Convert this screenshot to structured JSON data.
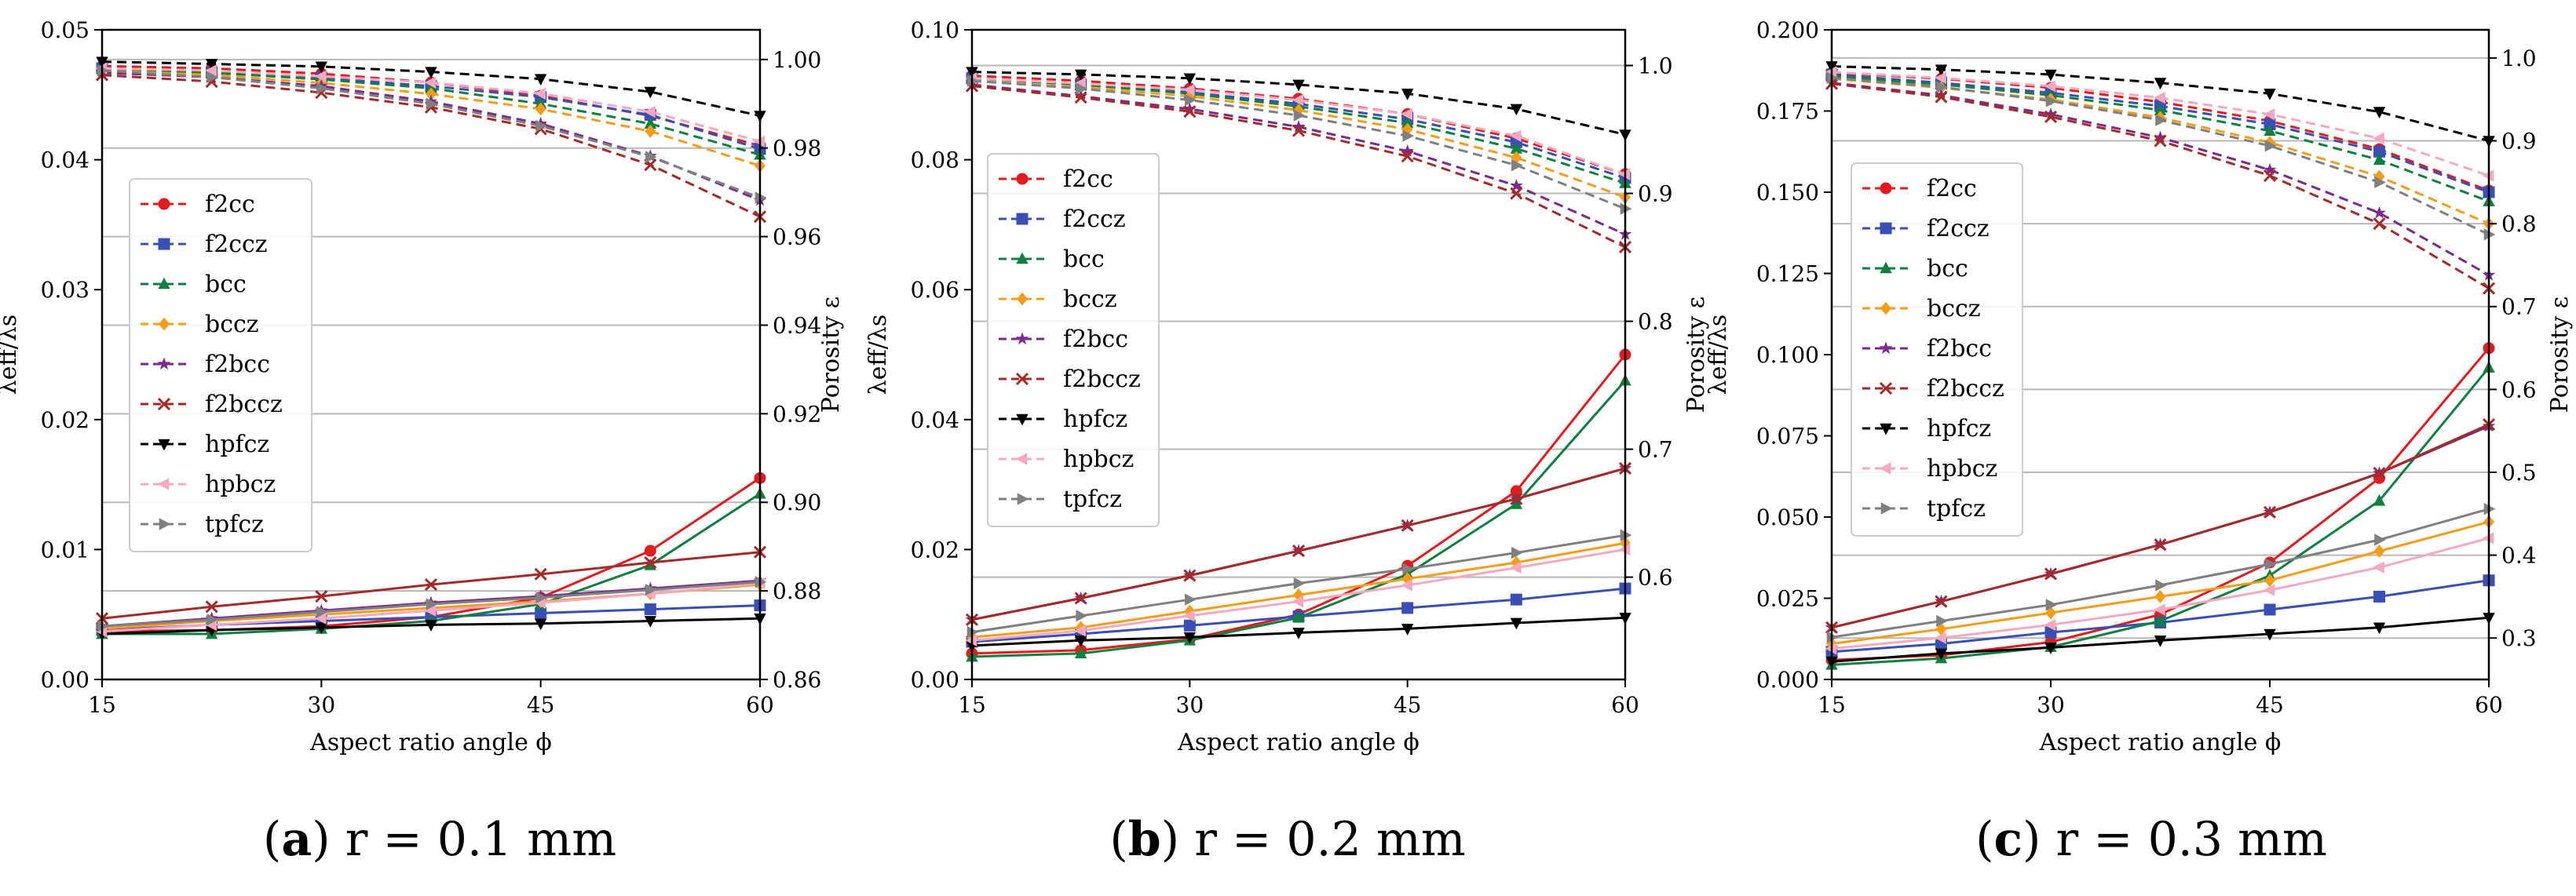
{
  "colors": {
    "f2cc": "#e41a1c",
    "f2ccz": "#3a4fb5",
    "bcc": "#0f8040",
    "bccz": "#f59c1a",
    "f2bcc": "#7b2a8f",
    "f2bccz": "#a52a2a",
    "hpfcz": "#000000",
    "hpbcz": "#f4a9c0",
    "tpfcz": "#808080",
    "grid": "#b8b8b8"
  },
  "markers": {
    "f2cc": "circle",
    "f2ccz": "square",
    "bcc": "triangle-up",
    "bccz": "diamond",
    "f2bcc": "star",
    "f2bccz": "x",
    "hpfcz": "triangle-down",
    "hpbcz": "triangle-left",
    "tpfcz": "triangle-right"
  },
  "chart_data": [
    {
      "type": "line",
      "caption_letter": "a",
      "caption_rest": "r = 0.1 mm",
      "xlabel": "Aspect ratio angle ϕ",
      "ylabel": "λeff/λs",
      "y2label": "Porosity ε",
      "xlim": [
        15,
        60
      ],
      "ylim": [
        0,
        0.05
      ],
      "y2lim": [
        0.86,
        1.0067
      ],
      "xticks": [
        "15",
        "30",
        "45",
        "60"
      ],
      "yticks": [
        "0.00",
        "0.01",
        "0.02",
        "0.03",
        "0.04",
        "0.05"
      ],
      "y2ticks": [
        "0.86",
        "0.88",
        "0.90",
        "0.92",
        "0.94",
        "0.96",
        "0.98",
        "1.00"
      ],
      "grid": "right axis",
      "legend_position": "left-middle",
      "x": [
        15,
        22.5,
        30,
        37.5,
        45,
        52.5,
        60
      ],
      "series": [
        {
          "name": "f2cc",
          "conductivity": [
            0.0037,
            0.0038,
            0.0041,
            0.0048,
            0.0063,
            0.0099,
            0.0155
          ],
          "porosity": [
            0.9985,
            0.998,
            0.9968,
            0.9948,
            0.9918,
            0.9873,
            0.9805
          ]
        },
        {
          "name": "f2ccz",
          "conductivity": [
            0.0038,
            0.0042,
            0.0045,
            0.0048,
            0.0051,
            0.0054,
            0.0057
          ],
          "porosity": [
            0.998,
            0.997,
            0.9958,
            0.994,
            0.9915,
            0.9875,
            0.9798
          ]
        },
        {
          "name": "bcc",
          "conductivity": [
            0.0035,
            0.0035,
            0.0039,
            0.0045,
            0.0058,
            0.0088,
            0.0143
          ],
          "porosity": [
            0.998,
            0.997,
            0.9955,
            0.9935,
            0.99,
            0.9855,
            0.9785
          ]
        },
        {
          "name": "bccz",
          "conductivity": [
            0.0039,
            0.0045,
            0.005,
            0.0055,
            0.006,
            0.0066,
            0.0073
          ],
          "porosity": [
            0.9975,
            0.9965,
            0.9947,
            0.9922,
            0.9888,
            0.9838,
            0.976
          ]
        },
        {
          "name": "f2bcc",
          "conductivity": [
            0.0041,
            0.0047,
            0.0053,
            0.0059,
            0.0064,
            0.007,
            0.0076
          ],
          "porosity": [
            0.997,
            0.996,
            0.994,
            0.9905,
            0.9855,
            0.9782,
            0.9682
          ]
        },
        {
          "name": "f2bccz",
          "conductivity": [
            0.0047,
            0.0056,
            0.0064,
            0.0073,
            0.0081,
            0.009,
            0.0098
          ],
          "porosity": [
            0.9965,
            0.995,
            0.9925,
            0.9892,
            0.9843,
            0.9762,
            0.9645
          ]
        },
        {
          "name": "hpfcz",
          "conductivity": [
            0.0035,
            0.0038,
            0.004,
            0.0042,
            0.0043,
            0.0045,
            0.0047
          ],
          "porosity": [
            0.9995,
            0.999,
            0.9984,
            0.9972,
            0.9956,
            0.9927,
            0.9873
          ]
        },
        {
          "name": "hpbcz",
          "conductivity": [
            0.0037,
            0.0042,
            0.0047,
            0.0053,
            0.0059,
            0.0066,
            0.0074
          ],
          "porosity": [
            0.998,
            0.9975,
            0.9962,
            0.9948,
            0.9923,
            0.9882,
            0.9815
          ]
        },
        {
          "name": "tpfcz",
          "conductivity": [
            0.0041,
            0.0046,
            0.0052,
            0.0058,
            0.0063,
            0.0069,
            0.0075
          ],
          "porosity": [
            0.9975,
            0.996,
            0.9935,
            0.99,
            0.985,
            0.978,
            0.9688
          ]
        }
      ]
    },
    {
      "type": "line",
      "caption_letter": "b",
      "caption_rest": "r = 0.2 mm",
      "xlabel": "Aspect ratio angle ϕ",
      "ylabel": "λeff/λs",
      "y2label": "Porosity ε",
      "xlim": [
        15,
        60
      ],
      "ylim": [
        0,
        0.1
      ],
      "y2lim": [
        0.52,
        1.0279
      ],
      "xticks": [
        "15",
        "30",
        "45",
        "60"
      ],
      "yticks": [
        "0.00",
        "0.02",
        "0.04",
        "0.06",
        "0.08",
        "0.10"
      ],
      "y2ticks": [
        "0.6",
        "0.7",
        "0.8",
        "0.9",
        "1.0"
      ],
      "grid": "right axis",
      "legend_position": "left-middle",
      "x": [
        15,
        22.5,
        30,
        37.5,
        45,
        52.5,
        60
      ],
      "series": [
        {
          "name": "f2cc",
          "conductivity": [
            0.004,
            0.0045,
            0.0062,
            0.01,
            0.0175,
            0.029,
            0.05
          ],
          "porosity": [
            0.992,
            0.988,
            0.982,
            0.974,
            0.962,
            0.943,
            0.915
          ]
        },
        {
          "name": "f2ccz",
          "conductivity": [
            0.0058,
            0.007,
            0.0083,
            0.0097,
            0.011,
            0.0123,
            0.014
          ],
          "porosity": [
            0.99,
            0.985,
            0.979,
            0.97,
            0.958,
            0.94,
            0.912
          ]
        },
        {
          "name": "bcc",
          "conductivity": [
            0.0035,
            0.004,
            0.006,
            0.0095,
            0.0162,
            0.027,
            0.046
          ],
          "porosity": [
            0.99,
            0.985,
            0.978,
            0.968,
            0.955,
            0.935,
            0.908
          ]
        },
        {
          "name": "bccz",
          "conductivity": [
            0.0065,
            0.008,
            0.0105,
            0.013,
            0.0155,
            0.018,
            0.021
          ],
          "porosity": [
            0.988,
            0.983,
            0.976,
            0.965,
            0.95,
            0.928,
            0.897
          ]
        },
        {
          "name": "f2bcc",
          "conductivity": [
            0.0092,
            0.0125,
            0.016,
            0.0198,
            0.0237,
            0.0278,
            0.0325
          ],
          "porosity": [
            0.985,
            0.976,
            0.966,
            0.952,
            0.933,
            0.906,
            0.868
          ]
        },
        {
          "name": "f2bccz",
          "conductivity": [
            0.0092,
            0.0125,
            0.016,
            0.0198,
            0.0237,
            0.0278,
            0.0325
          ],
          "porosity": [
            0.984,
            0.975,
            0.964,
            0.949,
            0.929,
            0.9,
            0.858
          ]
        },
        {
          "name": "hpfcz",
          "conductivity": [
            0.0052,
            0.006,
            0.0065,
            0.0072,
            0.0078,
            0.0087,
            0.0095
          ],
          "porosity": [
            0.995,
            0.993,
            0.99,
            0.985,
            0.978,
            0.966,
            0.946
          ]
        },
        {
          "name": "hpbcz",
          "conductivity": [
            0.006,
            0.0075,
            0.0098,
            0.012,
            0.0145,
            0.0172,
            0.02
          ],
          "porosity": [
            0.99,
            0.986,
            0.981,
            0.973,
            0.962,
            0.945,
            0.915
          ]
        },
        {
          "name": "tpfcz",
          "conductivity": [
            0.0073,
            0.0098,
            0.0123,
            0.0148,
            0.017,
            0.0195,
            0.0222
          ],
          "porosity": [
            0.988,
            0.982,
            0.973,
            0.961,
            0.945,
            0.922,
            0.888
          ]
        }
      ]
    },
    {
      "type": "line",
      "caption_letter": "c",
      "caption_rest": "r = 0.3 mm",
      "xlabel": "Aspect ratio angle ϕ",
      "ylabel": "λeff/λs",
      "y2label": "Porosity ε",
      "xlim": [
        15,
        60
      ],
      "ylim": [
        0,
        0.2
      ],
      "y2lim": [
        0.25,
        1.034
      ],
      "xticks": [
        "15",
        "30",
        "45",
        "60"
      ],
      "yticks": [
        "0.000",
        "0.025",
        "0.050",
        "0.075",
        "0.100",
        "0.125",
        "0.150",
        "0.175",
        "0.200"
      ],
      "y2ticks": [
        "0.3",
        "0.4",
        "0.5",
        "0.6",
        "0.7",
        "0.8",
        "0.9",
        "1.0"
      ],
      "grid": "right axis",
      "legend_position": "left-middle",
      "x": [
        15,
        22.5,
        30,
        37.5,
        45,
        52.5,
        60
      ],
      "series": [
        {
          "name": "f2cc",
          "conductivity": [
            0.006,
            0.0075,
            0.0115,
            0.02,
            0.036,
            0.062,
            0.102
          ],
          "porosity": [
            0.982,
            0.975,
            0.964,
            0.947,
            0.924,
            0.89,
            0.84
          ]
        },
        {
          "name": "f2ccz",
          "conductivity": [
            0.0085,
            0.011,
            0.0145,
            0.0175,
            0.0215,
            0.0255,
            0.0305
          ],
          "porosity": [
            0.98,
            0.97,
            0.958,
            0.942,
            0.92,
            0.887,
            0.838
          ]
        },
        {
          "name": "bcc",
          "conductivity": [
            0.0045,
            0.0065,
            0.01,
            0.018,
            0.032,
            0.055,
            0.096
          ],
          "porosity": [
            0.978,
            0.968,
            0.955,
            0.937,
            0.912,
            0.877,
            0.827
          ]
        },
        {
          "name": "bccz",
          "conductivity": [
            0.011,
            0.0155,
            0.0205,
            0.0255,
            0.0305,
            0.0395,
            0.0485
          ],
          "porosity": [
            0.975,
            0.964,
            0.95,
            0.928,
            0.898,
            0.857,
            0.8
          ]
        },
        {
          "name": "f2bcc",
          "conductivity": [
            0.016,
            0.024,
            0.0325,
            0.0415,
            0.0515,
            0.0635,
            0.078
          ],
          "porosity": [
            0.97,
            0.955,
            0.932,
            0.904,
            0.865,
            0.813,
            0.738
          ]
        },
        {
          "name": "f2bccz",
          "conductivity": [
            0.016,
            0.024,
            0.0325,
            0.0415,
            0.0515,
            0.0635,
            0.0785
          ],
          "porosity": [
            0.969,
            0.953,
            0.929,
            0.9,
            0.858,
            0.8,
            0.722
          ]
        },
        {
          "name": "hpfcz",
          "conductivity": [
            0.0055,
            0.008,
            0.0098,
            0.012,
            0.014,
            0.016,
            0.019
          ],
          "porosity": [
            0.99,
            0.986,
            0.98,
            0.97,
            0.957,
            0.935,
            0.9
          ]
        },
        {
          "name": "hpbcz",
          "conductivity": [
            0.0095,
            0.0128,
            0.0168,
            0.0215,
            0.0275,
            0.0345,
            0.0435
          ],
          "porosity": [
            0.983,
            0.976,
            0.966,
            0.952,
            0.932,
            0.903,
            0.858
          ]
        },
        {
          "name": "tpfcz",
          "conductivity": [
            0.013,
            0.018,
            0.023,
            0.029,
            0.0355,
            0.043,
            0.0525
          ],
          "porosity": [
            0.976,
            0.965,
            0.948,
            0.925,
            0.894,
            0.85,
            0.787
          ]
        }
      ]
    }
  ]
}
